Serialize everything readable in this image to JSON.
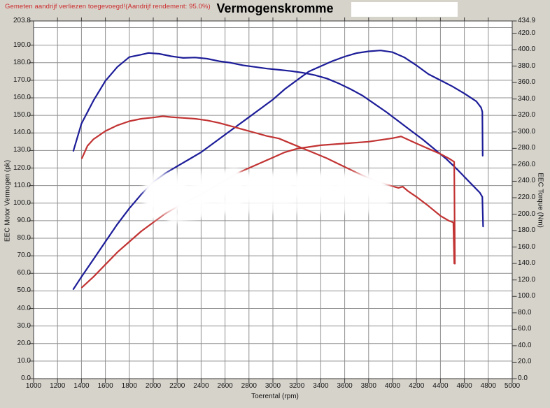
{
  "window": {
    "background_color": "#d6d3cb"
  },
  "header": {
    "annotation": "Gemeten aandrijf verliezen toegevoegd!(Aandrijf rendement: 95.0%)",
    "annotation_color": "#cc2e2e"
  },
  "chart_data": {
    "type": "line",
    "title": "Vermogenskromme",
    "xlabel": "Toerental (rpm)",
    "ylabel_left": "EEC Motor Vermogen (pk)",
    "ylabel_right": "EEC Torque (Nm)",
    "x_range": [
      1000,
      5000
    ],
    "y_left_range": [
      0,
      203.8
    ],
    "y_right_range": [
      0,
      434.9
    ],
    "x_tick_labels": [
      "1000",
      "1200",
      "1400",
      "1600",
      "1800",
      "2000",
      "2200",
      "2400",
      "2600",
      "2800",
      "3000",
      "3200",
      "3400",
      "3600",
      "3800",
      "4000",
      "4200",
      "4400",
      "4600",
      "4800",
      "5000"
    ],
    "y_left_tick_labels": [
      "203.8",
      "190.0",
      "180.0",
      "170.0",
      "160.0",
      "150.0",
      "140.0",
      "130.0",
      "120.0",
      "110.0",
      "100.0",
      "90.0",
      "80.0",
      "70.0",
      "60.0",
      "50.0",
      "40.0",
      "30.0",
      "20.0",
      "10.0",
      "0.0"
    ],
    "y_right_tick_labels": [
      "434.9",
      "420.0",
      "400.0",
      "380.0",
      "360.0",
      "340.0",
      "320.0",
      "300.0",
      "280.0",
      "260.0",
      "240.0",
      "220.0",
      "200.0",
      "180.0",
      "160.0",
      "140.0",
      "120.0",
      "100.0",
      "80.0",
      "60.0",
      "40.0",
      "20.0",
      "0.0"
    ],
    "grid": true,
    "grid_color": "#8f8f8f",
    "y_grid_step_left_units": 10,
    "legend": "none",
    "plot_background": "#ffffff",
    "series": [
      {
        "id": "torque-tuned-blue",
        "color": "#1d1d99",
        "axis": "right",
        "unit": "Nm",
        "points": [
          [
            1333,
            277
          ],
          [
            1400,
            310
          ],
          [
            1500,
            338
          ],
          [
            1600,
            362
          ],
          [
            1700,
            379
          ],
          [
            1800,
            391
          ],
          [
            1900,
            394
          ],
          [
            1960,
            396
          ],
          [
            2050,
            395
          ],
          [
            2150,
            392
          ],
          [
            2250,
            390
          ],
          [
            2350,
            390.5
          ],
          [
            2450,
            389
          ],
          [
            2550,
            386
          ],
          [
            2650,
            384
          ],
          [
            2750,
            381
          ],
          [
            2850,
            379
          ],
          [
            2950,
            377
          ],
          [
            3050,
            375.5
          ],
          [
            3150,
            374
          ],
          [
            3250,
            372
          ],
          [
            3350,
            369
          ],
          [
            3450,
            365
          ],
          [
            3550,
            359
          ],
          [
            3650,
            352
          ],
          [
            3750,
            344
          ],
          [
            3850,
            334
          ],
          [
            3950,
            324
          ],
          [
            4050,
            313
          ],
          [
            4150,
            302
          ],
          [
            4250,
            291
          ],
          [
            4350,
            279
          ],
          [
            4450,
            267
          ],
          [
            4550,
            253
          ],
          [
            4650,
            238
          ],
          [
            4730,
            226
          ],
          [
            4750,
            221
          ],
          [
            4757,
            185
          ]
        ]
      },
      {
        "id": "power-tuned-blue",
        "color": "#1d1d99",
        "axis": "left",
        "unit": "pk",
        "points": [
          [
            1333,
            51
          ],
          [
            1400,
            58
          ],
          [
            1500,
            68
          ],
          [
            1600,
            78
          ],
          [
            1700,
            88
          ],
          [
            1800,
            97
          ],
          [
            1900,
            105
          ],
          [
            2000,
            112
          ],
          [
            2100,
            117
          ],
          [
            2200,
            121
          ],
          [
            2300,
            125
          ],
          [
            2400,
            129
          ],
          [
            2500,
            134
          ],
          [
            2600,
            139
          ],
          [
            2700,
            144
          ],
          [
            2800,
            149
          ],
          [
            2900,
            154
          ],
          [
            3000,
            159
          ],
          [
            3100,
            165
          ],
          [
            3200,
            170
          ],
          [
            3300,
            175
          ],
          [
            3400,
            178
          ],
          [
            3500,
            181
          ],
          [
            3600,
            183.5
          ],
          [
            3700,
            185.5
          ],
          [
            3800,
            186.5
          ],
          [
            3900,
            187
          ],
          [
            4000,
            186
          ],
          [
            4100,
            183
          ],
          [
            4200,
            178.5
          ],
          [
            4300,
            173.5
          ],
          [
            4400,
            170
          ],
          [
            4500,
            166.5
          ],
          [
            4600,
            162.5
          ],
          [
            4700,
            158
          ],
          [
            4740,
            154.5
          ],
          [
            4750,
            152
          ],
          [
            4753,
            127
          ]
        ]
      },
      {
        "id": "torque-original-red",
        "color": "#c23333",
        "axis": "right",
        "unit": "Nm",
        "points": [
          [
            1404,
            268
          ],
          [
            1450,
            283
          ],
          [
            1500,
            291
          ],
          [
            1600,
            301
          ],
          [
            1700,
            308
          ],
          [
            1800,
            313
          ],
          [
            1900,
            316
          ],
          [
            2000,
            317.5
          ],
          [
            2080,
            319
          ],
          [
            2150,
            318
          ],
          [
            2250,
            317
          ],
          [
            2350,
            316
          ],
          [
            2450,
            314
          ],
          [
            2550,
            311
          ],
          [
            2650,
            307
          ],
          [
            2750,
            303
          ],
          [
            2850,
            299
          ],
          [
            2950,
            295
          ],
          [
            3050,
            292
          ],
          [
            3150,
            286
          ],
          [
            3250,
            280
          ],
          [
            3350,
            274
          ],
          [
            3450,
            268
          ],
          [
            3550,
            261
          ],
          [
            3650,
            254
          ],
          [
            3750,
            247
          ],
          [
            3850,
            241
          ],
          [
            3950,
            236
          ],
          [
            4050,
            232
          ],
          [
            4085,
            233.5
          ],
          [
            4130,
            228
          ],
          [
            4200,
            221
          ],
          [
            4300,
            210
          ],
          [
            4400,
            198
          ],
          [
            4470,
            192
          ],
          [
            4508,
            190
          ],
          [
            4516,
            140
          ]
        ]
      },
      {
        "id": "power-original-red",
        "color": "#c23333",
        "axis": "left",
        "unit": "pk",
        "points": [
          [
            1404,
            52
          ],
          [
            1500,
            58
          ],
          [
            1600,
            65
          ],
          [
            1700,
            72
          ],
          [
            1800,
            78
          ],
          [
            1900,
            84
          ],
          [
            2000,
            89
          ],
          [
            2100,
            94
          ],
          [
            2250,
            100
          ],
          [
            2400,
            105
          ],
          [
            2500,
            109
          ],
          [
            2600,
            113
          ],
          [
            2700,
            117
          ],
          [
            2800,
            120
          ],
          [
            2900,
            123
          ],
          [
            3000,
            126
          ],
          [
            3100,
            129
          ],
          [
            3200,
            131
          ],
          [
            3300,
            132
          ],
          [
            3400,
            133
          ],
          [
            3500,
            133.5
          ],
          [
            3600,
            134
          ],
          [
            3700,
            134.5
          ],
          [
            3800,
            135
          ],
          [
            3900,
            136
          ],
          [
            4000,
            137
          ],
          [
            4070,
            138
          ],
          [
            4120,
            136.5
          ],
          [
            4200,
            134
          ],
          [
            4300,
            131
          ],
          [
            4400,
            128
          ],
          [
            4470,
            125.5
          ],
          [
            4515,
            123.5
          ],
          [
            4521,
            65.5
          ]
        ]
      }
    ]
  }
}
